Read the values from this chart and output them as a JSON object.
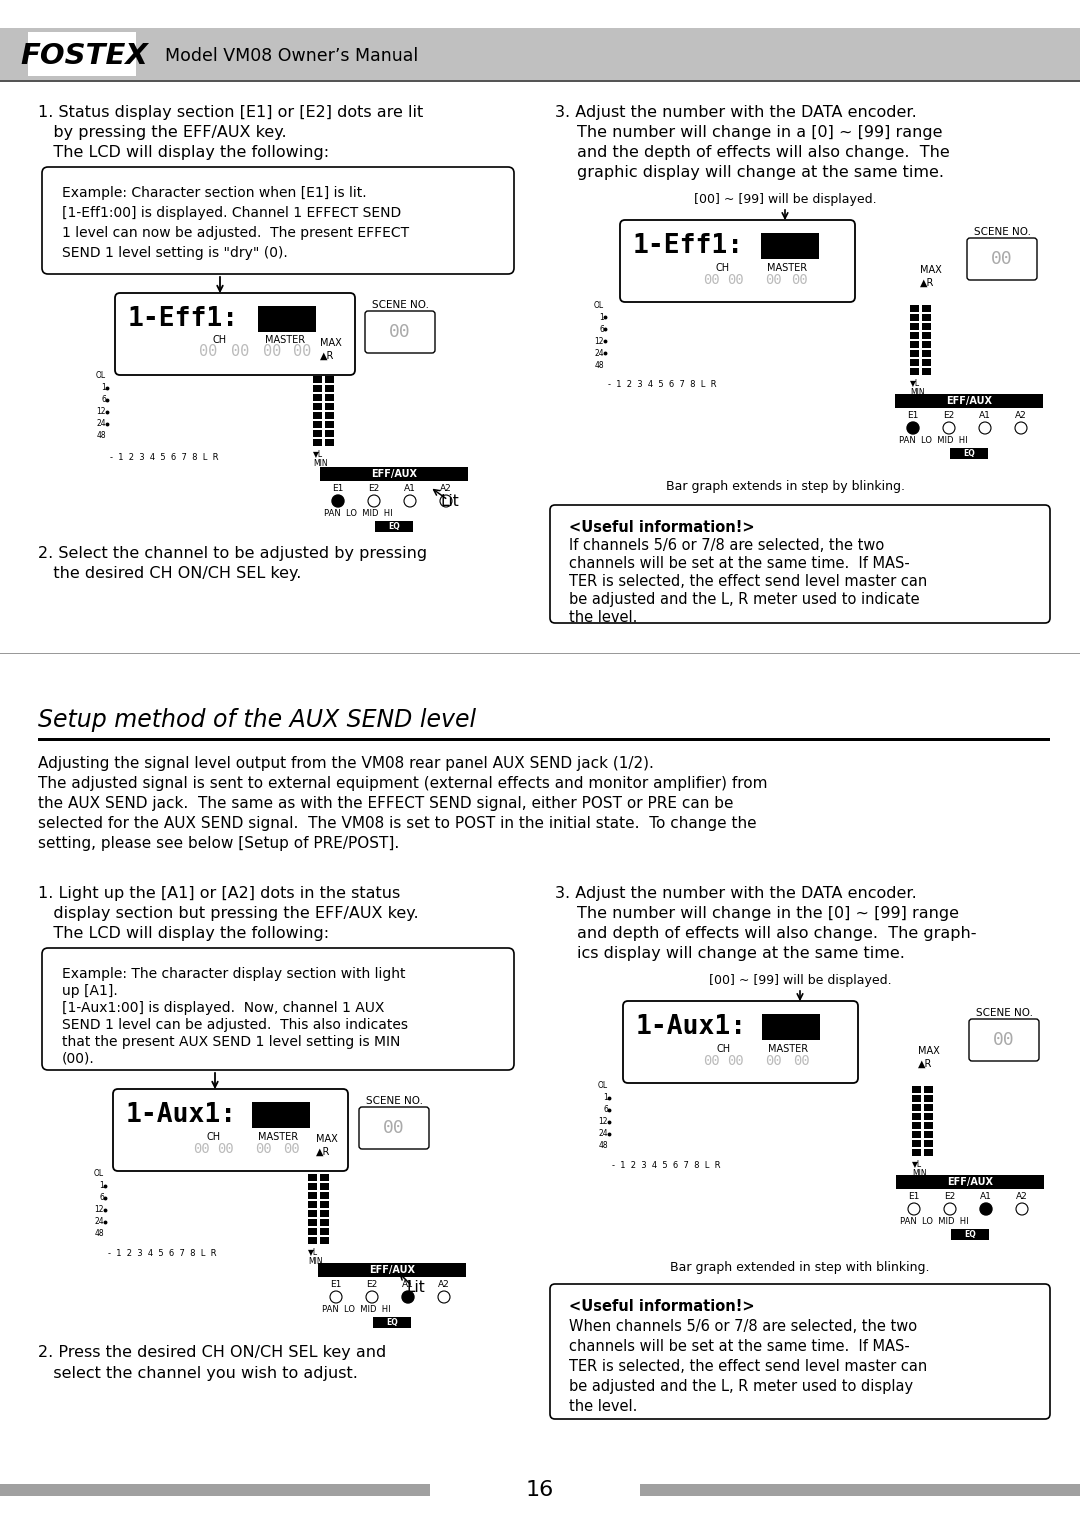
{
  "page_bg": "#ffffff",
  "header_bg": "#b8b8b8",
  "header_text": "Model VM08 Owner’s Manual",
  "header_brand": "FOSTEX",
  "section_title": "Setup method of the AUX SEND level",
  "footer_number": "16",
  "upper_left_step1_lines": [
    "1. Status display section [E1] or [E2] dots are lit",
    "   by pressing the EFF/AUX key.",
    "   The LCD will display the following:"
  ],
  "upper_left_box_lines": [
    "Example: Character section when [E1] is lit.",
    "[1-Eff1:00] is displayed. Channel 1 EFFECT SEND",
    "1 level can now be adjusted.  The present EFFECT",
    "SEND 1 level setting is \"dry\" (0)."
  ],
  "upper_left_step2_lines": [
    "2. Select the channel to be adjusted by pressing",
    "   the desired CH ON/CH SEL key."
  ],
  "upper_right_step3_lines": [
    "3. Adjust the number with the DATA encoder.",
    "   The number will change in a [0] ~ [99] range",
    "   and the depth of effects will also change.  The",
    "   graphic display will change at the same time."
  ],
  "upper_right_label": "[00] ~ [99] will be displayed.",
  "upper_right_caption": "Bar graph extends in step by blinking.",
  "upper_right_useful_lines": [
    "<Useful information!>",
    "If channels 5/6 or 7/8 are selected, the two",
    "channels will be set at the same time.  If MAS-",
    "TER is selected, the effect send level master can",
    "be adjusted and the L, R meter used to indicate",
    "the level."
  ],
  "intro_lines": [
    "Adjusting the signal level output from the VM08 rear panel AUX SEND jack (1/2).",
    "The adjusted signal is sent to external equipment (external effects and monitor amplifier) from",
    "the AUX SEND jack.  The same as with the EFFECT SEND signal, either POST or PRE can be",
    "selected for the AUX SEND signal.  The VM08 is set to POST in the initial state.  To change the",
    "setting, please see below [Setup of PRE/POST]."
  ],
  "lower_left_step1_lines": [
    "1. Light up the [A1] or [A2] dots in the status",
    "   display section but pressing the EFF/AUX key.",
    "   The LCD will display the following:"
  ],
  "lower_left_box_lines": [
    "Example: The character display section with light",
    "up [A1].",
    "[1-Aux1:00] is displayed.  Now, channel 1 AUX",
    "SEND 1 level can be adjusted.  This also indicates",
    "that the present AUX SEND 1 level setting is MIN",
    "(00)."
  ],
  "lower_left_step2_lines": [
    "2. Press the desired CH ON/CH SEL key and",
    "   select the channel you wish to adjust."
  ],
  "lower_right_step3_lines": [
    "3. Adjust the number with the DATA encoder.",
    "   The number will change in the [0] ~ [99] range",
    "   and depth of effects will also change.  The graph-",
    "   ics display will change at the same time."
  ],
  "lower_right_label": "[00] ~ [99] will be displayed.",
  "lower_right_caption": "Bar graph extended in step with blinking.",
  "lower_right_useful_lines": [
    "<Useful information!>",
    "When channels 5/6 or 7/8 are selected, the two",
    "channels will be set at the same time.  If MAS-",
    "TER is selected, the effect send level master can",
    "be adjusted and the L, R meter used to display",
    "the level."
  ]
}
